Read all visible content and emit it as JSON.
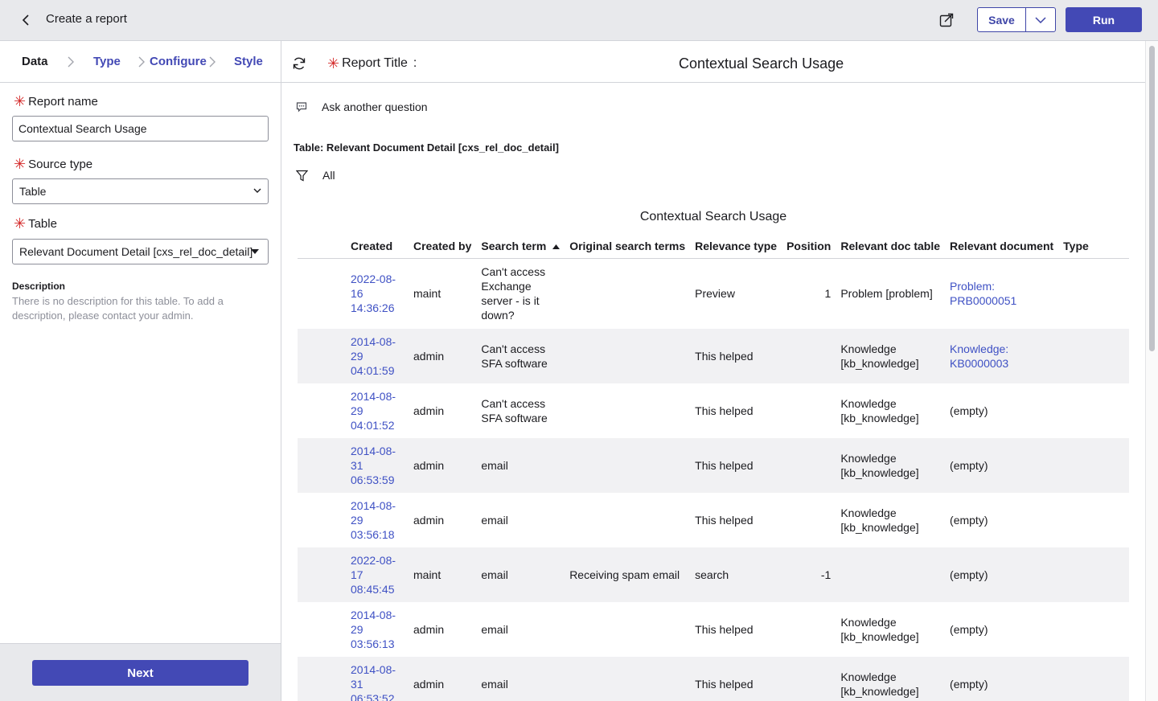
{
  "header": {
    "title": "Create a report",
    "save_label": "Save",
    "run_label": "Run"
  },
  "steps": [
    {
      "label": "Data"
    },
    {
      "label": "Type"
    },
    {
      "label": "Configure"
    },
    {
      "label": "Style"
    }
  ],
  "form": {
    "report_name_label": "Report name",
    "report_name_value": "Contextual Search Usage",
    "source_type_label": "Source type",
    "source_type_value": "Table",
    "table_label": "Table",
    "table_value": "Relevant Document Detail [cxs_rel_doc_detail]",
    "description_title": "Description",
    "description_text": "There is no description for this table. To add a description, please contact your admin."
  },
  "footer": {
    "next_label": "Next"
  },
  "report": {
    "title_label": "Report Title",
    "title_colon": ":",
    "title_value": "Contextual Search Usage",
    "ask_label": "Ask another question",
    "table_title": "Table: Relevant Document Detail [cxs_rel_doc_detail]",
    "filter_label": "All",
    "chart_title": "Contextual Search Usage"
  },
  "table": {
    "columns": [
      "Created",
      "Created by",
      "Search term",
      "Original search terms",
      "Relevance type",
      "Position",
      "Relevant doc table",
      "Relevant document",
      "Type"
    ],
    "sort_column": "Search term",
    "sort_direction": "ascending",
    "rows": [
      {
        "created": "2022-08-16 14:36:26",
        "created_by": "maint",
        "search_term": "Can't access Exchange server - is it down?",
        "original": "",
        "relevance": "Preview",
        "position": "1",
        "doc_table": "Problem [problem]",
        "document": "Problem: PRB0000051",
        "type": ""
      },
      {
        "created": "2014-08-29 04:01:59",
        "created_by": "admin",
        "search_term": "Can't access SFA software",
        "original": "",
        "relevance": "This helped",
        "position": "",
        "doc_table": "Knowledge [kb_knowledge]",
        "document": "Knowledge: KB0000003",
        "type": ""
      },
      {
        "created": "2014-08-29 04:01:52",
        "created_by": "admin",
        "search_term": "Can't access SFA software",
        "original": "",
        "relevance": "This helped",
        "position": "",
        "doc_table": "Knowledge [kb_knowledge]",
        "document": "(empty)",
        "type": ""
      },
      {
        "created": "2014-08-31 06:53:59",
        "created_by": "admin",
        "search_term": "email",
        "original": "",
        "relevance": "This helped",
        "position": "",
        "doc_table": "Knowledge [kb_knowledge]",
        "document": "(empty)",
        "type": ""
      },
      {
        "created": "2014-08-29 03:56:18",
        "created_by": "admin",
        "search_term": "email",
        "original": "",
        "relevance": "This helped",
        "position": "",
        "doc_table": "Knowledge [kb_knowledge]",
        "document": "(empty)",
        "type": ""
      },
      {
        "created": "2022-08-17 08:45:45",
        "created_by": "maint",
        "search_term": "email",
        "original": "Receiving spam email",
        "relevance": "search",
        "position": "-1",
        "doc_table": "",
        "document": "(empty)",
        "type": ""
      },
      {
        "created": "2014-08-29 03:56:13",
        "created_by": "admin",
        "search_term": "email",
        "original": "",
        "relevance": "This helped",
        "position": "",
        "doc_table": "Knowledge [kb_knowledge]",
        "document": "(empty)",
        "type": ""
      },
      {
        "created": "2014-08-31 06:53:52",
        "created_by": "admin",
        "search_term": "email",
        "original": "",
        "relevance": "This helped",
        "position": "",
        "doc_table": "Knowledge [kb_knowledge]",
        "document": "(empty)",
        "type": ""
      }
    ]
  },
  "colors": {
    "accent": "#4349b5",
    "link": "#3f51c4",
    "required": "#d42a2a",
    "header_bg": "#e8e9ec",
    "row_alt": "#f1f1f3"
  }
}
